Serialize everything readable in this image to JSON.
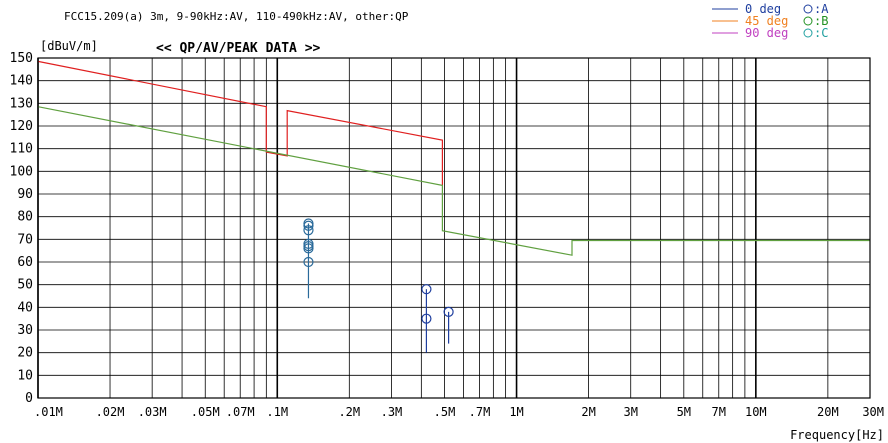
{
  "chart_data": {
    "type": "line",
    "subtitle": "FCC15.209(a) 3m, 9-90kHz:AV, 110-490kHz:AV, other:QP",
    "title": "<< QP/AV/PEAK DATA >>",
    "ylabel": "[dBuV/m]",
    "xlabel": "Frequency[Hz]",
    "x_scale": "log",
    "xlim": [
      10000,
      30000000
    ],
    "ylim": [
      0,
      150
    ],
    "grid": true,
    "y_ticks": [
      "0",
      "10",
      "20",
      "30",
      "40",
      "50",
      "60",
      "70",
      "80",
      "90",
      "100",
      "110",
      "120",
      "130",
      "140",
      "150"
    ],
    "x_ticks": [
      {
        "label": ".01M",
        "value": 10000
      },
      {
        "label": ".02M",
        "value": 20000
      },
      {
        "label": ".03M",
        "value": 30000
      },
      {
        "label": ".05M",
        "value": 50000
      },
      {
        "label": ".07M",
        "value": 70000
      },
      {
        "label": ".1M",
        "value": 100000
      },
      {
        "label": ".2M",
        "value": 200000
      },
      {
        "label": ".3M",
        "value": 300000
      },
      {
        "label": ".5M",
        "value": 500000
      },
      {
        "label": ".7M",
        "value": 700000
      },
      {
        "label": "1M",
        "value": 1000000
      },
      {
        "label": "2M",
        "value": 2000000
      },
      {
        "label": "3M",
        "value": 3000000
      },
      {
        "label": "5M",
        "value": 5000000
      },
      {
        "label": "7M",
        "value": 7000000
      },
      {
        "label": "10M",
        "value": 10000000
      },
      {
        "label": "20M",
        "value": 20000000
      },
      {
        "label": "30M",
        "value": 30000000
      }
    ],
    "legend": {
      "placement": "top-right",
      "lines": [
        {
          "label": "0 deg",
          "color": "#1f3f9f"
        },
        {
          "label": "45 deg",
          "color": "#f08020"
        },
        {
          "label": "90 deg",
          "color": "#c040c0"
        }
      ],
      "markers": [
        {
          "label": "A",
          "color": "#1f3f9f"
        },
        {
          "label": "B",
          "color": "#209020"
        },
        {
          "label": "C",
          "color": "#20a0a0"
        }
      ]
    },
    "limit_lines": [
      {
        "color": "#e02020",
        "points": [
          [
            10000,
            148.5
          ],
          [
            90000,
            128.5
          ],
          [
            90000,
            108.5
          ],
          [
            110000,
            106.8
          ],
          [
            110000,
            126.8
          ],
          [
            490000,
            113.8
          ],
          [
            490000,
            93.8
          ]
        ]
      },
      {
        "color": "#60a040",
        "points": [
          [
            10000,
            128.5
          ],
          [
            490000,
            93.8
          ],
          [
            490000,
            73.8
          ],
          [
            1705000,
            63.0
          ],
          [
            1705000,
            69.5
          ],
          [
            30000000,
            69.5
          ]
        ]
      }
    ],
    "markers": [
      {
        "freq": 135000,
        "values": [
          77,
          76,
          74,
          68,
          67,
          66,
          60
        ],
        "floor": 44,
        "color": "#2a6a9a"
      },
      {
        "freq": 420000,
        "values": [
          48,
          35
        ],
        "floor": 20,
        "color": "#1f3f9f"
      },
      {
        "freq": 520000,
        "values": [
          38
        ],
        "floor": 24,
        "color": "#1f3f9f"
      }
    ]
  }
}
